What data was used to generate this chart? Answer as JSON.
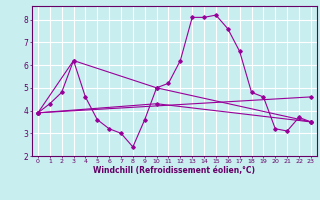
{
  "xlabel": "Windchill (Refroidissement éolien,°C)",
  "background_color": "#c8eef0",
  "grid_color": "#ffffff",
  "line_color": "#990099",
  "xlim": [
    -0.5,
    23.5
  ],
  "ylim": [
    2,
    8.6
  ],
  "yticks": [
    2,
    3,
    4,
    5,
    6,
    7,
    8
  ],
  "xticks": [
    0,
    1,
    2,
    3,
    4,
    5,
    6,
    7,
    8,
    9,
    10,
    11,
    12,
    13,
    14,
    15,
    16,
    17,
    18,
    19,
    20,
    21,
    22,
    23
  ],
  "series1_x": [
    0,
    1,
    2,
    3,
    4,
    5,
    6,
    7,
    8,
    9,
    10,
    11,
    12,
    13,
    14,
    15,
    16,
    17,
    18,
    19,
    20,
    21,
    22,
    23
  ],
  "series1_y": [
    3.9,
    4.3,
    4.8,
    6.2,
    4.6,
    3.6,
    3.2,
    3.0,
    2.4,
    3.6,
    5.0,
    5.2,
    6.2,
    8.1,
    8.1,
    8.2,
    7.6,
    6.6,
    4.8,
    4.6,
    3.2,
    3.1,
    3.7,
    3.5
  ],
  "series2_x": [
    0,
    10,
    23
  ],
  "series2_y": [
    3.9,
    4.3,
    3.5
  ],
  "series3_x": [
    0,
    3,
    10,
    23
  ],
  "series3_y": [
    3.9,
    6.2,
    5.0,
    3.5
  ],
  "series4_x": [
    0,
    23
  ],
  "series4_y": [
    3.9,
    4.6
  ]
}
